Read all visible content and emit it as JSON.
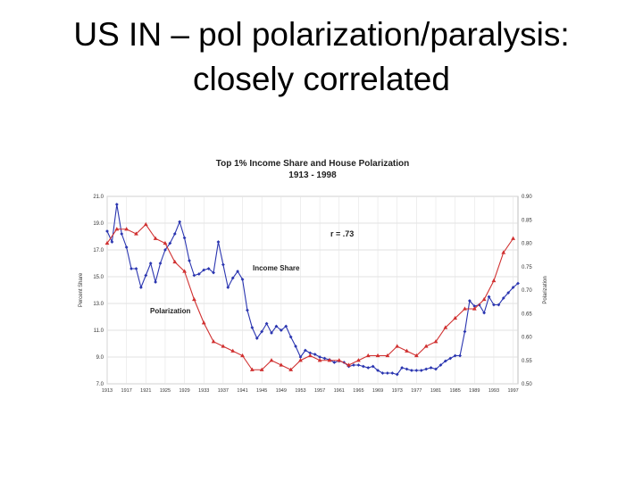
{
  "slide": {
    "title_line1": "US IN – pol polarization/paralysis:",
    "title_line2": "closely correlated"
  },
  "chart_data": {
    "type": "line",
    "title_line1": "Top 1% Income Share and House Polarization",
    "title_line2": "1913 - 1998",
    "xlabel": "",
    "ylabel": "Percent Share",
    "ylabel_right": "Polarization",
    "xlim": [
      1913,
      1998
    ],
    "ylim": [
      7.0,
      21.0
    ],
    "ylim_right": [
      0.5,
      0.9
    ],
    "x_ticks": [
      1913,
      1917,
      1921,
      1925,
      1929,
      1933,
      1937,
      1941,
      1945,
      1949,
      1953,
      1957,
      1961,
      1965,
      1969,
      1973,
      1977,
      1981,
      1985,
      1989,
      1993,
      1997
    ],
    "x_tick_labels": [
      "1913",
      "1917",
      "1921",
      "1925",
      "1929",
      "1933",
      "1937",
      "1941",
      "1945",
      "1949",
      "1953",
      "1957",
      "1961",
      "1965",
      "1969",
      "1973",
      "1977",
      "1981",
      "1985",
      "1989",
      "1993",
      "1997"
    ],
    "y_ticks": [
      7.0,
      9.0,
      11.0,
      13.0,
      15.0,
      17.0,
      19.0,
      21.0
    ],
    "y_tick_labels": [
      "7.0",
      "9.0",
      "11.0",
      "13.0",
      "15.0",
      "17.0",
      "19.0",
      "21.0"
    ],
    "y2_ticks": [
      0.5,
      0.55,
      0.6,
      0.65,
      0.7,
      0.75,
      0.8,
      0.85,
      0.9
    ],
    "y2_tick_labels": [
      "0.50",
      "0.55",
      "0.60",
      "0.65",
      "0.70",
      "0.75",
      "0.80",
      "0.85",
      "0.90"
    ],
    "grid": true,
    "annotation": "r = .73",
    "series": [
      {
        "name": "Income Share",
        "axis": "left",
        "color": "#2a35b0",
        "marker": "diamond",
        "x": [
          1913,
          1914,
          1915,
          1916,
          1917,
          1918,
          1919,
          1920,
          1921,
          1922,
          1923,
          1924,
          1925,
          1926,
          1927,
          1928,
          1929,
          1930,
          1931,
          1932,
          1933,
          1934,
          1935,
          1936,
          1937,
          1938,
          1939,
          1940,
          1941,
          1942,
          1943,
          1944,
          1945,
          1946,
          1947,
          1948,
          1949,
          1950,
          1951,
          1952,
          1953,
          1954,
          1955,
          1956,
          1957,
          1958,
          1959,
          1960,
          1961,
          1962,
          1963,
          1964,
          1965,
          1966,
          1967,
          1968,
          1969,
          1970,
          1971,
          1972,
          1973,
          1974,
          1975,
          1976,
          1977,
          1978,
          1979,
          1980,
          1981,
          1982,
          1983,
          1984,
          1985,
          1986,
          1987,
          1988,
          1989,
          1990,
          1991,
          1992,
          1993,
          1994,
          1995,
          1996,
          1997,
          1998
        ],
        "y": [
          18.4,
          17.6,
          20.4,
          18.2,
          17.2,
          15.6,
          15.6,
          14.2,
          15.1,
          16.0,
          14.6,
          16.0,
          17.0,
          17.5,
          18.2,
          19.1,
          17.9,
          16.2,
          15.1,
          15.2,
          15.5,
          15.6,
          15.3,
          17.6,
          15.9,
          14.2,
          14.9,
          15.4,
          14.8,
          12.5,
          11.2,
          10.4,
          10.9,
          11.5,
          10.8,
          11.3,
          11.0,
          11.3,
          10.5,
          9.8,
          9.0,
          9.5,
          9.3,
          9.2,
          9.0,
          8.9,
          8.8,
          8.6,
          8.7,
          8.6,
          8.3,
          8.4,
          8.4,
          8.3,
          8.2,
          8.3,
          8.0,
          7.8,
          7.8,
          7.8,
          7.7,
          8.2,
          8.1,
          8.0,
          8.0,
          8.0,
          8.1,
          8.2,
          8.1,
          8.4,
          8.7,
          8.9,
          9.1,
          9.1,
          10.9,
          13.2,
          12.8,
          12.9,
          12.3,
          13.5,
          12.9,
          12.9,
          13.4,
          13.8,
          14.2,
          14.5
        ]
      },
      {
        "name": "Polarization",
        "axis": "right",
        "color": "#d03030",
        "marker": "triangle",
        "x": [
          1913,
          1915,
          1917,
          1919,
          1921,
          1923,
          1925,
          1927,
          1929,
          1931,
          1933,
          1935,
          1937,
          1939,
          1941,
          1943,
          1945,
          1947,
          1949,
          1951,
          1953,
          1955,
          1957,
          1959,
          1961,
          1963,
          1965,
          1967,
          1969,
          1971,
          1973,
          1975,
          1977,
          1979,
          1981,
          1983,
          1985,
          1987,
          1989,
          1991,
          1993,
          1995,
          1997
        ],
        "y": [
          0.8,
          0.83,
          0.83,
          0.82,
          0.84,
          0.81,
          0.8,
          0.76,
          0.74,
          0.68,
          0.63,
          0.59,
          0.58,
          0.57,
          0.56,
          0.53,
          0.53,
          0.55,
          0.54,
          0.53,
          0.55,
          0.56,
          0.55,
          0.55,
          0.55,
          0.54,
          0.55,
          0.56,
          0.56,
          0.56,
          0.58,
          0.57,
          0.56,
          0.58,
          0.59,
          0.62,
          0.64,
          0.66,
          0.66,
          0.68,
          0.72,
          0.78,
          0.81
        ]
      }
    ],
    "labels": {
      "income_share": "Income Share",
      "polarization": "Polarization"
    }
  }
}
